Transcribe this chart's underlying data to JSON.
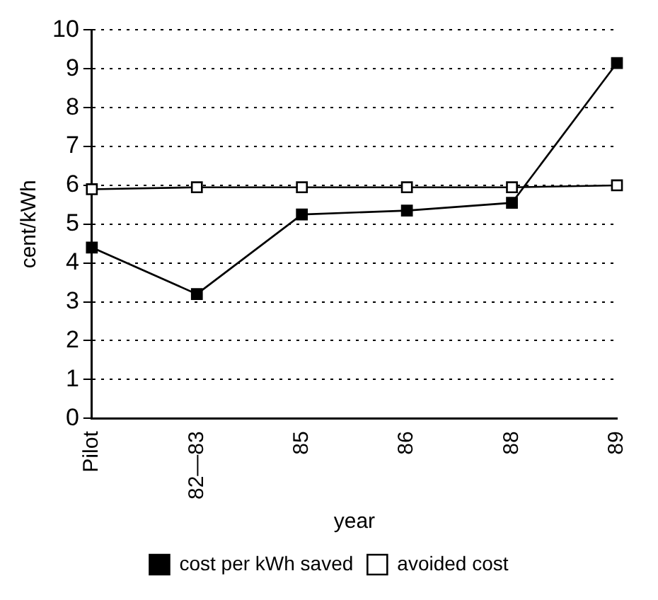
{
  "chart_data": {
    "type": "line",
    "xlabel": "year",
    "ylabel": "cent/kWh",
    "categories": [
      "Pilot",
      "82—83",
      "85",
      "86",
      "88",
      "89"
    ],
    "series": [
      {
        "name": "cost per kWh saved",
        "color": "#000000",
        "values": [
          4.4,
          3.2,
          5.25,
          5.35,
          5.55,
          9.15
        ]
      },
      {
        "name": "avoided cost",
        "color": "#000000",
        "values": [
          5.9,
          5.95,
          5.95,
          5.95,
          5.95,
          6.0
        ]
      }
    ],
    "ylim": [
      0,
      10
    ],
    "yticks": [
      0,
      1,
      2,
      3,
      4,
      5,
      6,
      7,
      8,
      9,
      10
    ],
    "grid": "y",
    "legend": "bottom",
    "marker": "square",
    "line_style": "solid"
  }
}
